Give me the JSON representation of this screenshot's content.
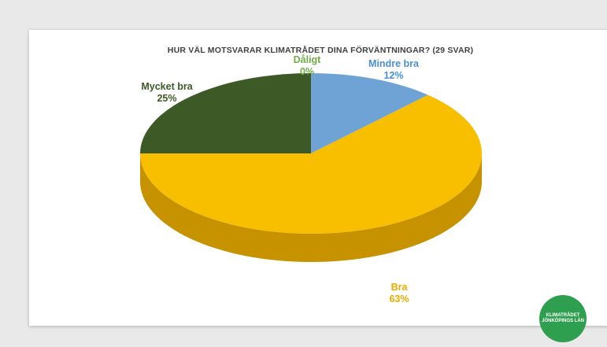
{
  "chart_data": {
    "type": "pie",
    "title": "HUR VÄL MOTSVARAR KLIMATRÅDET DINA FÖRVÄNTNINGAR? (29 SVAR)",
    "slices": [
      {
        "label": "Mindre bra",
        "value": 12,
        "percent_label": "12%",
        "color": "#6fa3d6",
        "side_color": "#4c7eb0"
      },
      {
        "label": "Bra",
        "value": 63,
        "percent_label": "63%",
        "color": "#f8be00",
        "side_color": "#c69200"
      },
      {
        "label": "Mycket bra",
        "value": 25,
        "percent_label": "25%",
        "color": "#3d5a26",
        "side_color": "#2a3f1a"
      },
      {
        "label": "Dåligt",
        "value": 0,
        "percent_label": "0%",
        "color": "#70ad47",
        "side_color": "#4f7f30"
      }
    ],
    "label_colors": {
      "Mindre bra": "#4a8fd4",
      "Bra": "#e6ac00",
      "Mycket bra": "#3d5a26",
      "Dåligt": "#70ad47"
    }
  },
  "logo": {
    "line1": "KLIMATRÅDET",
    "line2": "JÖNKÖPINGS LÄN",
    "color": "#2e9e4f"
  }
}
